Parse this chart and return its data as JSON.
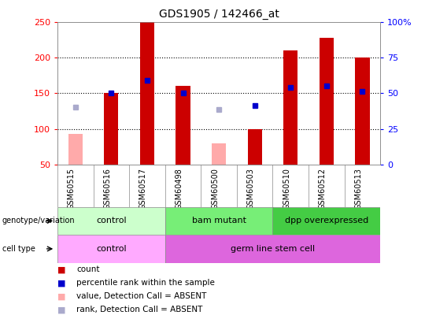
{
  "title": "GDS1905 / 142466_at",
  "samples": [
    "GSM60515",
    "GSM60516",
    "GSM60517",
    "GSM60498",
    "GSM60500",
    "GSM60503",
    "GSM60510",
    "GSM60512",
    "GSM60513"
  ],
  "count_values": [
    null,
    150,
    250,
    160,
    null,
    100,
    210,
    228,
    200
  ],
  "count_absent": [
    93,
    null,
    null,
    null,
    80,
    null,
    null,
    null,
    null
  ],
  "percentile_rank": [
    null,
    150,
    168,
    150,
    null,
    133,
    158,
    160,
    153
  ],
  "rank_absent": [
    130,
    null,
    null,
    null,
    127,
    null,
    null,
    null,
    null
  ],
  "ylim": [
    50,
    250
  ],
  "yticks_left": [
    50,
    100,
    150,
    200,
    250
  ],
  "yticks_right_labels": [
    "0",
    "25",
    "50",
    "75",
    "100%"
  ],
  "yticks_right_vals": [
    50,
    100,
    150,
    200,
    250
  ],
  "bar_color_present": "#cc0000",
  "bar_color_absent": "#ffaaaa",
  "marker_color_present": "#0000cc",
  "marker_color_absent": "#aaaacc",
  "bar_width": 0.4,
  "genotype_groups": [
    {
      "label": "control",
      "start": 0,
      "end": 2,
      "color": "#ccffcc"
    },
    {
      "label": "bam mutant",
      "start": 3,
      "end": 5,
      "color": "#77ee77"
    },
    {
      "label": "dpp overexpressed",
      "start": 6,
      "end": 8,
      "color": "#44cc44"
    }
  ],
  "celltype_groups": [
    {
      "label": "control",
      "start": 0,
      "end": 2,
      "color": "#ffaaff"
    },
    {
      "label": "germ line stem cell",
      "start": 3,
      "end": 8,
      "color": "#dd66dd"
    }
  ],
  "legend_items": [
    {
      "label": "count",
      "color": "#cc0000"
    },
    {
      "label": "percentile rank within the sample",
      "color": "#0000cc"
    },
    {
      "label": "value, Detection Call = ABSENT",
      "color": "#ffaaaa"
    },
    {
      "label": "rank, Detection Call = ABSENT",
      "color": "#aaaacc"
    }
  ],
  "left_labels": [
    {
      "text": "genotype/variation",
      "row": 0
    },
    {
      "text": "cell type",
      "row": 1
    }
  ],
  "xtick_bg": "#cccccc",
  "grid_color": "#000000",
  "grid_style": "dotted",
  "grid_lw": 0.8
}
